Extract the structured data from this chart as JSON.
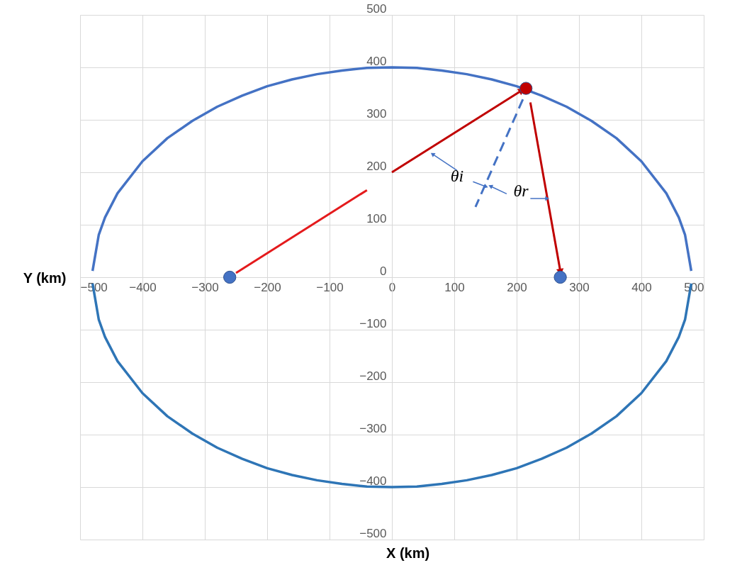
{
  "chart_data": {
    "type": "line",
    "xlabel": "X (km)",
    "ylabel": "Y (km)",
    "xlim": [
      -500,
      500
    ],
    "ylim": [
      -500,
      500
    ],
    "xticks": [
      -500,
      -400,
      -300,
      -200,
      -100,
      0,
      100,
      200,
      300,
      400,
      500
    ],
    "yticks": [
      -500,
      -400,
      -300,
      -200,
      -100,
      0,
      100,
      200,
      300,
      400,
      500
    ],
    "grid": true,
    "series": [
      {
        "color": "#4472c4",
        "x": [
          -480,
          -470,
          -460,
          -440,
          -400,
          -360,
          -320,
          -280,
          -240,
          -200,
          -160,
          -120,
          -80,
          -40,
          0,
          40,
          80,
          120,
          160,
          200,
          240,
          280,
          320,
          360,
          400,
          440,
          460,
          470,
          480
        ],
        "values": [
          12,
          81,
          114,
          160,
          221,
          265,
          298,
          325,
          346,
          364,
          377,
          387,
          394,
          399,
          400,
          399,
          394,
          387,
          377,
          364,
          346,
          325,
          298,
          265,
          221,
          160,
          114,
          81,
          12
        ]
      },
      {
        "color": "#2e75b6",
        "x": [
          -480,
          -470,
          -460,
          -440,
          -400,
          -360,
          -320,
          -280,
          -240,
          -200,
          -160,
          -120,
          -80,
          -40,
          0,
          40,
          80,
          120,
          160,
          200,
          240,
          280,
          320,
          360,
          400,
          440,
          460,
          470,
          480
        ],
        "values": [
          -12,
          -81,
          -114,
          -160,
          -221,
          -265,
          -298,
          -325,
          -346,
          -364,
          -377,
          -387,
          -394,
          -399,
          -400,
          -399,
          -394,
          -387,
          -377,
          -364,
          -346,
          -325,
          -298,
          -265,
          -221,
          -160,
          -114,
          -81,
          -12
        ]
      },
      {
        "color": "#e41a1c",
        "x": [
          -250,
          -40
        ],
        "values": [
          8,
          166
        ]
      },
      {
        "color": "#c00000",
        "marker": "triangle",
        "x": [
          0,
          207
        ],
        "values": [
          200,
          355
        ]
      },
      {
        "color": "#c00000",
        "marker": "triangle",
        "x": [
          222,
          270
        ],
        "values": [
          333,
          12
        ]
      },
      {
        "color": "#4472c4",
        "line_style": "dashed",
        "x": [
          210,
          134
        ],
        "values": [
          339,
          134
        ]
      },
      {
        "color": "#4472c4",
        "marker": "triangle",
        "x": [
          104,
          66
        ],
        "values": [
          204,
          234
        ]
      },
      {
        "color": "#4472c4",
        "marker": "triangle",
        "x": [
          130,
          150
        ],
        "values": [
          182,
          173
        ]
      },
      {
        "color": "#4472c4",
        "marker": "triangle",
        "x": [
          184,
          159
        ],
        "values": [
          159,
          173
        ]
      },
      {
        "color": "#4472c4",
        "marker": "triangle",
        "x": [
          222,
          248
        ],
        "values": [
          150,
          150
        ]
      },
      {
        "type": "scatter",
        "color": "#4472c4",
        "x": [
          -260,
          270
        ],
        "values": [
          0,
          0
        ]
      },
      {
        "type": "scatter",
        "color": "#c00000",
        "x": [
          215
        ],
        "values": [
          360
        ]
      }
    ],
    "annotations": [
      "θi",
      "θr"
    ]
  }
}
